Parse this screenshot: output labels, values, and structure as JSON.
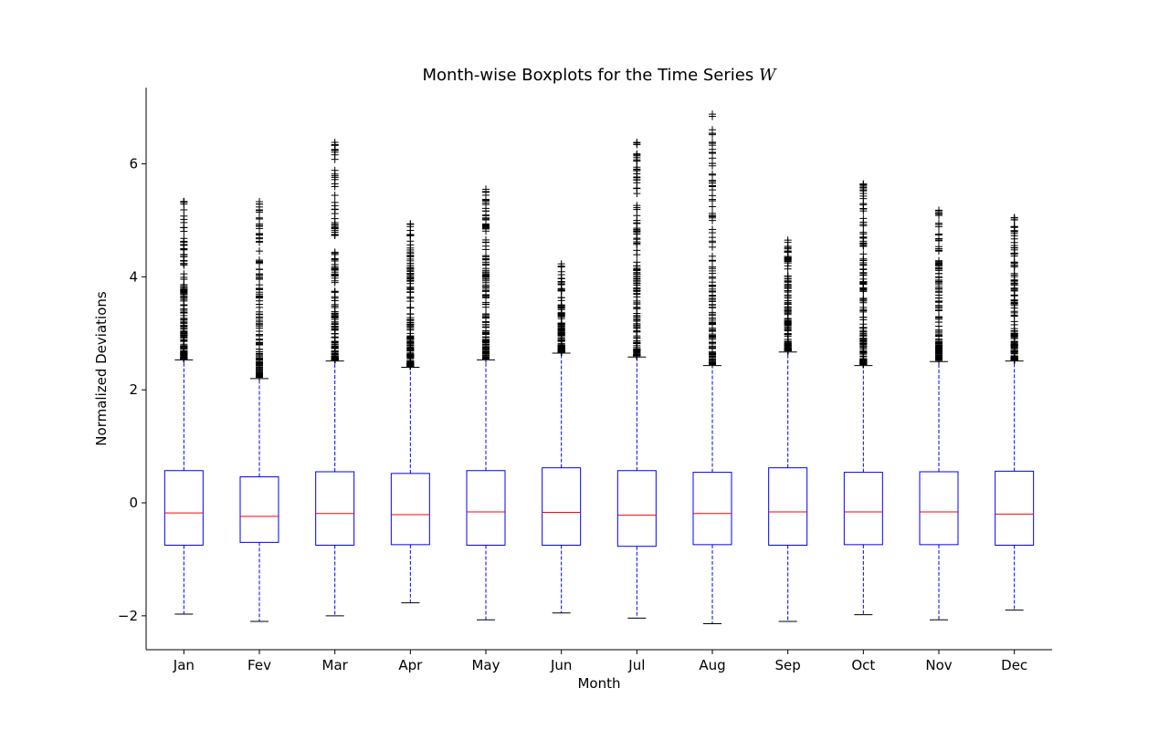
{
  "chart_data": {
    "type": "boxplot",
    "title": "Month-wise Boxplots for the Time Series",
    "title_variable": "W",
    "xlabel": "Month",
    "ylabel": "Normalized Deviations",
    "ylim": [
      -2.6,
      7.35
    ],
    "yticks": [
      -2,
      0,
      2,
      4,
      6
    ],
    "grid": false,
    "categories": [
      "Jan",
      "Fev",
      "Mar",
      "Apr",
      "May",
      "Jun",
      "Jul",
      "Aug",
      "Sep",
      "Oct",
      "Nov",
      "Dec"
    ],
    "colors": {
      "box": "#0000ff",
      "median": "#ff0000",
      "whisker": "#0000ff",
      "cap": "#000000",
      "flier": "#000000"
    },
    "boxes": [
      {
        "whisker_low": -1.97,
        "q1": -0.75,
        "median": -0.18,
        "q3": 0.57,
        "whisker_high": 2.53,
        "flier_max": 5.33
      },
      {
        "whisker_low": -2.1,
        "q1": -0.7,
        "median": -0.24,
        "q3": 0.46,
        "whisker_high": 2.2,
        "flier_max": 5.33
      },
      {
        "whisker_low": -2.0,
        "q1": -0.75,
        "median": -0.19,
        "q3": 0.55,
        "whisker_high": 2.51,
        "flier_max": 6.38
      },
      {
        "whisker_low": -1.77,
        "q1": -0.74,
        "median": -0.21,
        "q3": 0.52,
        "whisker_high": 2.4,
        "flier_max": 4.93
      },
      {
        "whisker_low": -2.07,
        "q1": -0.75,
        "median": -0.16,
        "q3": 0.57,
        "whisker_high": 2.53,
        "flier_max": 5.55
      },
      {
        "whisker_low": -1.95,
        "q1": -0.75,
        "median": -0.17,
        "q3": 0.62,
        "whisker_high": 2.65,
        "flier_max": 4.23
      },
      {
        "whisker_low": -2.04,
        "q1": -0.77,
        "median": -0.22,
        "q3": 0.57,
        "whisker_high": 2.58,
        "flier_max": 6.38
      },
      {
        "whisker_low": -2.14,
        "q1": -0.74,
        "median": -0.19,
        "q3": 0.54,
        "whisker_high": 2.43,
        "flier_max": 6.88
      },
      {
        "whisker_low": -2.1,
        "q1": -0.75,
        "median": -0.16,
        "q3": 0.62,
        "whisker_high": 2.67,
        "flier_max": 4.65
      },
      {
        "whisker_low": -1.98,
        "q1": -0.74,
        "median": -0.16,
        "q3": 0.54,
        "whisker_high": 2.43,
        "flier_max": 5.63
      },
      {
        "whisker_low": -2.07,
        "q1": -0.74,
        "median": -0.16,
        "q3": 0.55,
        "whisker_high": 2.5,
        "flier_max": 5.18
      },
      {
        "whisker_low": -1.9,
        "q1": -0.75,
        "median": -0.2,
        "q3": 0.56,
        "whisker_high": 2.51,
        "flier_max": 5.05
      }
    ]
  }
}
